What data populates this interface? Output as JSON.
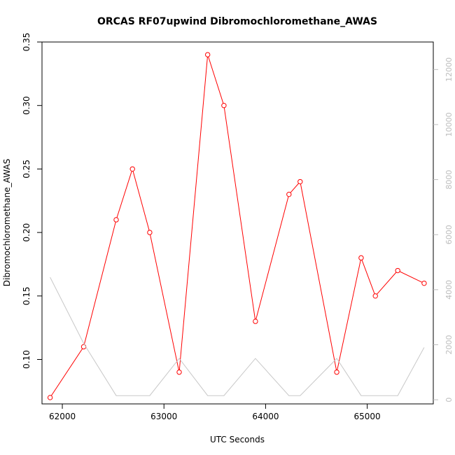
{
  "chart_data": {
    "type": "line",
    "title": "ORCAS RF07upwind Dibromochloromethane_AWAS",
    "xlabel": "UTC Seconds",
    "ylabel": "Dibromochloromethane_AWAS",
    "xlim": [
      61800,
      65650
    ],
    "ylim": [
      0.065,
      0.35
    ],
    "y2lim": [
      -150,
      13000
    ],
    "x_ticks": [
      62000,
      63000,
      64000,
      65000
    ],
    "y_ticks": [
      0.1,
      0.15,
      0.2,
      0.25,
      0.3,
      0.35
    ],
    "y2_ticks": [
      0,
      2000,
      4000,
      6000,
      8000,
      10000,
      12000
    ],
    "series": [
      {
        "axis": "left",
        "color": "#ff0000",
        "marker": "circle",
        "x": [
          61880,
          62210,
          62530,
          62690,
          62860,
          63150,
          63430,
          63590,
          63900,
          64230,
          64340,
          64700,
          64940,
          65080,
          65300,
          65560
        ],
        "y": [
          0.07,
          0.11,
          0.21,
          0.25,
          0.2,
          0.09,
          0.34,
          0.3,
          0.13,
          0.23,
          0.24,
          0.09,
          0.18,
          0.15,
          0.17,
          0.16
        ]
      },
      {
        "axis": "right",
        "color": "#c8c8c8",
        "marker": "none",
        "x": [
          61880,
          62210,
          62530,
          62690,
          62860,
          63150,
          63430,
          63590,
          63900,
          64230,
          64340,
          64700,
          64940,
          65080,
          65300,
          65560
        ],
        "y": [
          4450,
          2050,
          150,
          150,
          150,
          1500,
          150,
          150,
          1500,
          150,
          150,
          1500,
          150,
          150,
          150,
          1900
        ]
      }
    ]
  }
}
